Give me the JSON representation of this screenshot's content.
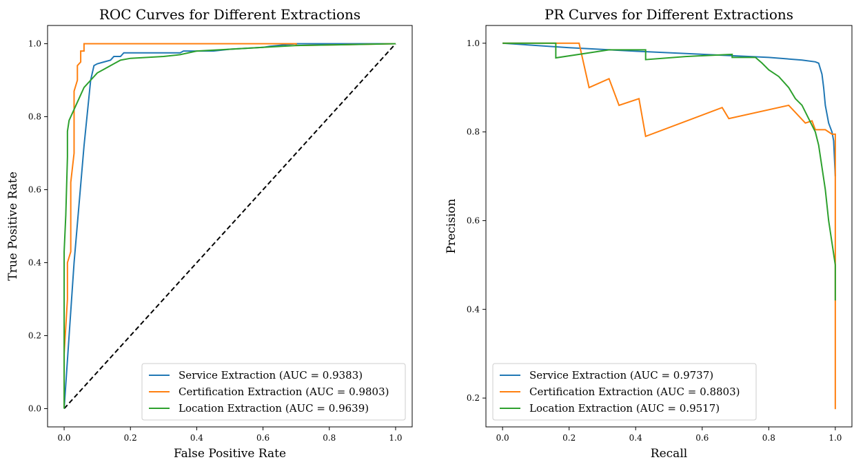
{
  "chart_data": [
    {
      "type": "line",
      "title": "ROC Curves for Different Extractions",
      "xlabel": "False Positive Rate",
      "ylabel": "True Positive Rate",
      "xlim": [
        -0.05,
        1.05
      ],
      "ylim": [
        -0.05,
        1.05
      ],
      "xticks": [
        0.0,
        0.2,
        0.4,
        0.6,
        0.8,
        1.0
      ],
      "yticks": [
        0.0,
        0.2,
        0.4,
        0.6,
        0.8,
        1.0
      ],
      "xtick_labels": [
        "0.0",
        "0.2",
        "0.4",
        "0.6",
        "0.8",
        "1.0"
      ],
      "ytick_labels": [
        "0.0",
        "0.2",
        "0.4",
        "0.6",
        "0.8",
        "1.0"
      ],
      "legend_position": "lower-right",
      "grid": false,
      "reference_line": {
        "x": [
          0,
          1
        ],
        "y": [
          0,
          1
        ],
        "style": "dashed",
        "color": "#000000"
      },
      "series": [
        {
          "name": "Service Extraction (AUC = 0.9383)",
          "color": "#1f77b4",
          "x": [
            0,
            0.03,
            0.06,
            0.08,
            0.09,
            0.1,
            0.12,
            0.14,
            0.15,
            0.17,
            0.18,
            0.35,
            0.36,
            0.45,
            0.5,
            0.6,
            0.62,
            0.7,
            1.0
          ],
          "y": [
            0,
            0.4,
            0.72,
            0.9,
            0.94,
            0.945,
            0.95,
            0.955,
            0.965,
            0.965,
            0.975,
            0.975,
            0.98,
            0.98,
            0.985,
            0.99,
            0.993,
            1.0,
            1.0
          ]
        },
        {
          "name": "Certification Extraction (AUC = 0.9803)",
          "color": "#ff7f0e",
          "x": [
            0,
            0.0,
            0.01,
            0.01,
            0.02,
            0.02,
            0.03,
            0.03,
            0.04,
            0.04,
            0.05,
            0.05,
            0.06,
            0.06,
            0.7,
            0.7,
            1.0
          ],
          "y": [
            0,
            0.15,
            0.3,
            0.4,
            0.43,
            0.62,
            0.7,
            0.87,
            0.9,
            0.94,
            0.95,
            0.98,
            0.98,
            1.0,
            1.0,
            0.995,
            1.0
          ]
        },
        {
          "name": "Location Extraction (AUC = 0.9639)",
          "color": "#2ca02c",
          "x": [
            0,
            0.0,
            0.0,
            0.005,
            0.01,
            0.01,
            0.015,
            0.02,
            0.03,
            0.04,
            0.05,
            0.06,
            0.08,
            0.1,
            0.12,
            0.15,
            0.17,
            0.2,
            0.3,
            0.35,
            0.4,
            0.5,
            0.6,
            0.7,
            1.0
          ],
          "y": [
            0,
            0.15,
            0.43,
            0.53,
            0.69,
            0.76,
            0.79,
            0.8,
            0.82,
            0.84,
            0.86,
            0.88,
            0.9,
            0.92,
            0.93,
            0.945,
            0.955,
            0.96,
            0.965,
            0.97,
            0.98,
            0.985,
            0.99,
            0.995,
            1.0
          ]
        }
      ]
    },
    {
      "type": "line",
      "title": "PR Curves for Different Extractions",
      "xlabel": "Recall",
      "ylabel": "Precision",
      "xlim": [
        -0.05,
        1.05
      ],
      "ylim": [
        0.135,
        1.04
      ],
      "xticks": [
        0.0,
        0.2,
        0.4,
        0.6,
        0.8,
        1.0
      ],
      "yticks": [
        0.2,
        0.4,
        0.6,
        0.8,
        1.0
      ],
      "xtick_labels": [
        "0.0",
        "0.2",
        "0.4",
        "0.6",
        "0.8",
        "1.0"
      ],
      "ytick_labels": [
        "0.2",
        "0.4",
        "0.6",
        "0.8",
        "1.0"
      ],
      "legend_position": "lower-left",
      "grid": false,
      "series": [
        {
          "name": "Service Extraction (AUC = 0.9737)",
          "color": "#1f77b4",
          "x": [
            0.0,
            0.2,
            0.4,
            0.6,
            0.8,
            0.9,
            0.94,
            0.95,
            0.96,
            0.965,
            0.97,
            0.975,
            0.98,
            0.985,
            0.99,
            0.995,
            1.0
          ],
          "y": [
            1.0,
            0.99,
            0.982,
            0.975,
            0.968,
            0.962,
            0.958,
            0.955,
            0.93,
            0.9,
            0.86,
            0.84,
            0.82,
            0.81,
            0.8,
            0.78,
            0.7
          ]
        },
        {
          "name": "Certification Extraction (AUC = 0.8803)",
          "color": "#ff7f0e",
          "x": [
            0.0,
            0.23,
            0.26,
            0.32,
            0.35,
            0.41,
            0.43,
            0.66,
            0.68,
            0.86,
            0.91,
            0.93,
            0.94,
            0.97,
            0.98,
            0.99,
            1.0,
            1.0,
            1.0
          ],
          "y": [
            1.0,
            1.0,
            0.9,
            0.92,
            0.86,
            0.875,
            0.79,
            0.855,
            0.83,
            0.86,
            0.82,
            0.825,
            0.805,
            0.805,
            0.8,
            0.795,
            0.795,
            0.51,
            0.175
          ]
        },
        {
          "name": "Location Extraction (AUC = 0.9517)",
          "color": "#2ca02c",
          "x": [
            0.0,
            0.16,
            0.16,
            0.32,
            0.43,
            0.43,
            0.55,
            0.69,
            0.69,
            0.76,
            0.78,
            0.8,
            0.83,
            0.86,
            0.88,
            0.9,
            0.92,
            0.94,
            0.95,
            0.96,
            0.97,
            0.98,
            0.99,
            1.0,
            1.0
          ],
          "y": [
            1.0,
            1.0,
            0.967,
            0.985,
            0.985,
            0.963,
            0.97,
            0.975,
            0.968,
            0.968,
            0.955,
            0.94,
            0.925,
            0.9,
            0.875,
            0.86,
            0.83,
            0.8,
            0.77,
            0.72,
            0.67,
            0.6,
            0.55,
            0.5,
            0.42
          ]
        }
      ]
    }
  ]
}
